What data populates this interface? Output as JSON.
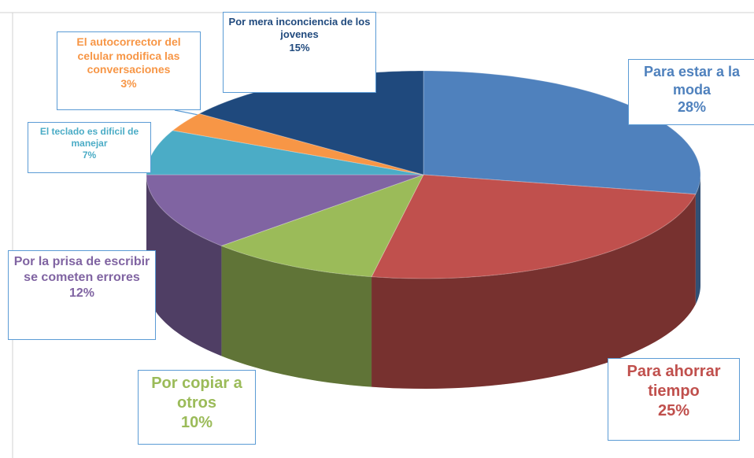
{
  "chart_data": {
    "type": "pie",
    "categories": [
      "Para estar a la moda",
      "Para ahorrar tiempo",
      "Por copiar a otros",
      "Por la prisa de escribir se cometen errores",
      "El teclado es dificil de manejar",
      "El autocorrector del celular modifica las conversaciones",
      "Por mera inconciencia de los jovenes"
    ],
    "values": [
      28,
      25,
      10,
      12,
      7,
      3,
      15
    ],
    "value_labels": [
      "28%",
      "25%",
      "10%",
      "12%",
      "7%",
      "3%",
      "15%"
    ],
    "colors": [
      "#4f81bd",
      "#c0504d",
      "#9bbb59",
      "#8064a2",
      "#4bacc6",
      "#f79646",
      "#1f497d"
    ]
  }
}
